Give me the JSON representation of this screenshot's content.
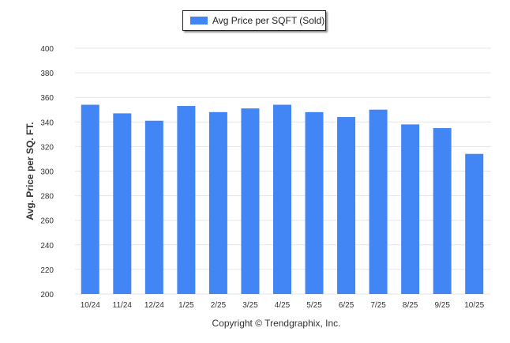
{
  "chart_data": {
    "type": "bar",
    "title": "",
    "xlabel": "",
    "ylabel": "Avg. Price per SQ. FT.",
    "ylim": [
      200,
      400
    ],
    "yticks": [
      200,
      220,
      240,
      260,
      280,
      300,
      320,
      340,
      360,
      380,
      400
    ],
    "grid": true,
    "legend_position": "top-center",
    "categories": [
      "10/24",
      "11/24",
      "12/24",
      "1/25",
      "2/25",
      "3/25",
      "4/25",
      "5/25",
      "6/25",
      "7/25",
      "8/25",
      "9/25",
      "10/25"
    ],
    "series": [
      {
        "name": "Avg Price per SQFT (Sold)",
        "color": "#4285f4",
        "values": [
          354,
          347,
          341,
          353,
          348,
          351,
          354,
          348,
          344,
          350,
          338,
          335,
          314
        ]
      }
    ]
  },
  "footer": {
    "copyright": "Copyright © Trendgraphix, Inc."
  }
}
